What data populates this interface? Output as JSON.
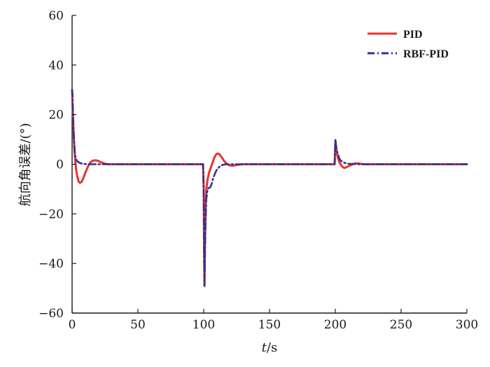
{
  "chart_data": {
    "type": "line",
    "xlabel": "t/s",
    "ylabel": "航向角误差/(°)",
    "xlim": [
      0,
      300
    ],
    "ylim": [
      -60,
      60
    ],
    "xticks": [
      0,
      50,
      100,
      150,
      200,
      250,
      300
    ],
    "yticks": [
      -60,
      -40,
      -20,
      0,
      20,
      40,
      60
    ],
    "ytick_labels": [
      "−60",
      "−40",
      "−20",
      "0",
      "20",
      "40",
      "60"
    ],
    "grid": false,
    "legend_position": "top-right",
    "series": [
      {
        "name": "PID",
        "color": "#e8322b",
        "style": "solid",
        "x": [
          0,
          0.5,
          1,
          1.5,
          2,
          3,
          4,
          5,
          6,
          7,
          8,
          9,
          10,
          12,
          14,
          16,
          18,
          20,
          22,
          24,
          26,
          28,
          30,
          40,
          60,
          80,
          99.5,
          100,
          100.3,
          100.6,
          101,
          101.5,
          102,
          103,
          104,
          105,
          106,
          107,
          108,
          109,
          110,
          111,
          112,
          113,
          114,
          116,
          118,
          120,
          122,
          124,
          126,
          130,
          140,
          160,
          199.5,
          199.8,
          200.1,
          200.5,
          201,
          202,
          203,
          204,
          205,
          206,
          207,
          208,
          210,
          212,
          214,
          216,
          218,
          220,
          222,
          224,
          230,
          250,
          300
        ],
        "y": [
          30,
          22,
          15,
          9,
          4,
          -2,
          -5,
          -7,
          -7.5,
          -7.2,
          -6.3,
          -5,
          -3.5,
          -1,
          0.8,
          1.5,
          1.6,
          1.3,
          0.8,
          0.4,
          0.1,
          0,
          0,
          0,
          0,
          0,
          0,
          -10,
          -35,
          -49,
          -30,
          -17,
          -10,
          -6,
          -3.5,
          -2,
          -0.5,
          1,
          2.5,
          3.6,
          4.2,
          4.3,
          4,
          3.3,
          2.5,
          1,
          0,
          -0.5,
          -0.6,
          -0.4,
          -0.2,
          0,
          0,
          0,
          0,
          5,
          9.5,
          7.5,
          5,
          2.5,
          1,
          0,
          -0.8,
          -1.3,
          -1.5,
          -1.3,
          -0.8,
          -0.3,
          0.2,
          0.4,
          0.3,
          0.1,
          0,
          0,
          0,
          0,
          0
        ]
      },
      {
        "name": "RBF-PID",
        "color": "#35318c",
        "style": "dashdot",
        "x": [
          0,
          0.3,
          0.6,
          1,
          1.5,
          2,
          2.5,
          3,
          4,
          5,
          6,
          7,
          8,
          10,
          12,
          14,
          16,
          20,
          30,
          60,
          99.5,
          100,
          100.3,
          100.6,
          101,
          101.5,
          102,
          103,
          104,
          105,
          106,
          107,
          108,
          109,
          110,
          112,
          114,
          116,
          118,
          120,
          125,
          130,
          150,
          199.5,
          199.8,
          200.1,
          200.5,
          201,
          202,
          203,
          204,
          206,
          208,
          210,
          215,
          220,
          250,
          300
        ],
        "y": [
          30,
          28,
          22,
          15,
          9,
          5,
          3,
          2,
          1.2,
          0.8,
          0.5,
          0.3,
          0.2,
          0.1,
          0,
          0,
          0,
          0,
          0,
          0,
          0,
          -10,
          -35,
          -49.5,
          -35,
          -22,
          -14,
          -10,
          -9.5,
          -9.3,
          -8,
          -6,
          -4.5,
          -3.2,
          -2.2,
          -1,
          -0.3,
          -0.1,
          0,
          0,
          0,
          0,
          0,
          0,
          5,
          10,
          8,
          6,
          4,
          2.5,
          1.5,
          0.8,
          0.4,
          0.2,
          0.05,
          0,
          0,
          0
        ]
      }
    ]
  }
}
